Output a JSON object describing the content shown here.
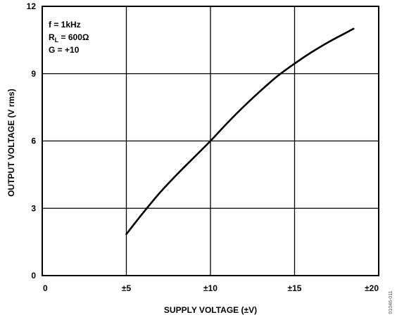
{
  "chart_data": {
    "type": "line",
    "title": "",
    "xlabel": "SUPPLY VOLTAGE (±V)",
    "ylabel": "OUTPUT VOLTAGE (V rms)",
    "xlim": [
      0,
      20
    ],
    "ylim": [
      0,
      12
    ],
    "grid": true,
    "x_ticks": [
      {
        "value": 0,
        "label": "0"
      },
      {
        "value": 5,
        "label": "±5"
      },
      {
        "value": 10,
        "label": "±10"
      },
      {
        "value": 15,
        "label": "±15"
      },
      {
        "value": 20,
        "label": "±20"
      }
    ],
    "y_ticks": [
      {
        "value": 0,
        "label": "0"
      },
      {
        "value": 3,
        "label": "3"
      },
      {
        "value": 6,
        "label": "6"
      },
      {
        "value": 9,
        "label": "9"
      },
      {
        "value": 12,
        "label": "12"
      }
    ],
    "conditions": {
      "line1": "f = 1kHz",
      "line2_prefix": "R",
      "line2_sub": "L",
      "line2_suffix": " = 600Ω",
      "line3": "G = +10"
    },
    "series": [
      {
        "x": [
          5,
          6,
          7,
          8,
          9,
          10,
          11,
          12,
          13,
          14,
          15,
          16,
          17,
          18,
          18.5
        ],
        "y": [
          1.85,
          2.8,
          3.7,
          4.5,
          5.25,
          6.0,
          6.8,
          7.55,
          8.25,
          8.9,
          9.45,
          9.95,
          10.4,
          10.8,
          11.0
        ]
      }
    ],
    "figure_id": "01046-011",
    "line_color": "#000000"
  }
}
